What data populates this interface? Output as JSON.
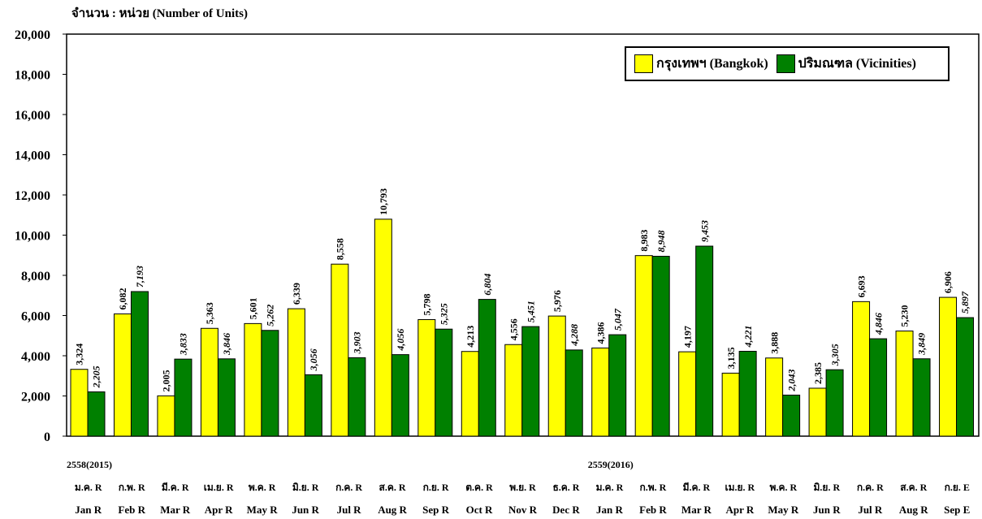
{
  "header": {
    "unit_label": "จำนวน : หน่วย (Number of Units)"
  },
  "colors": {
    "bangkok": "#ffff00",
    "vicinities": "#008000"
  },
  "legend": {
    "bangkok": "กรุงเทพฯ (Bangkok)",
    "vicinities": "ปริมณฑล (Vicinities)"
  },
  "chart_data": {
    "type": "bar",
    "ylim": [
      0,
      20000
    ],
    "yticks": [
      "0",
      "2,000",
      "4,000",
      "6,000",
      "8,000",
      "10,000",
      "12,000",
      "14,000",
      "16,000",
      "18,000",
      "20,000"
    ],
    "grid": false,
    "legend_position": "top-right",
    "year_labels": [
      {
        "text": "2558(2015)",
        "index": 0
      },
      {
        "text": "2559(2016)",
        "index": 12
      }
    ],
    "categories_th": [
      "ม.ค. R",
      "ก.พ. R",
      "มี.ค. R",
      "เม.ย. R",
      "พ.ค. R",
      "มิ.ย. R",
      "ก.ค. R",
      "ส.ค. R",
      "ก.ย. R",
      "ต.ค. R",
      "พ.ย. R",
      "ธ.ค. R",
      "ม.ค. R",
      "ก.พ. R",
      "มี.ค. R",
      "เม.ย. R",
      "พ.ค. R",
      "มิ.ย. R",
      "ก.ค. R",
      "ส.ค. R",
      "ก.ย. E"
    ],
    "categories": [
      "Jan R",
      "Feb R",
      "Mar R",
      "Apr R",
      "May R",
      "Jun R",
      "Jul R",
      "Aug R",
      "Sep R",
      "Oct R",
      "Nov R",
      "Dec R",
      "Jan R",
      "Feb R",
      "Mar R",
      "Apr R",
      "May R",
      "Jun R",
      "Jul R",
      "Aug R",
      "Sep E"
    ],
    "series": [
      {
        "name": "กรุงเทพฯ (Bangkok)",
        "values": [
          3324,
          6082,
          2005,
          5363,
          5601,
          6339,
          8558,
          10793,
          5798,
          4213,
          4556,
          5976,
          4386,
          8983,
          4197,
          3135,
          3888,
          2385,
          6693,
          5230,
          6906
        ],
        "labels": [
          "3,324",
          "6,082",
          "2,005",
          "5,363",
          "5,601",
          "6,339",
          "8,558",
          "10,793",
          "5,798",
          "4,213",
          "4,556",
          "5,976",
          "4,386",
          "8,983",
          "4,197",
          "3,135",
          "3,888",
          "2,385",
          "6,693",
          "5,230",
          "6,906"
        ]
      },
      {
        "name": "ปริมณฑล (Vicinities)",
        "values": [
          2205,
          7193,
          3833,
          3846,
          5262,
          3056,
          3903,
          4056,
          5325,
          6804,
          5451,
          4288,
          5047,
          8948,
          9453,
          4221,
          2043,
          3305,
          4846,
          3849,
          5897
        ],
        "labels": [
          "2,205",
          "7,193",
          "3,833",
          "3,846",
          "5,262",
          "3,056",
          "3,903",
          "4,056",
          "5,325",
          "6,804",
          "5,451",
          "4,288",
          "5,047",
          "8,948",
          "9,453",
          "4,221",
          "2,043",
          "3,305",
          "4,846",
          "3,849",
          "5,897"
        ]
      }
    ]
  }
}
